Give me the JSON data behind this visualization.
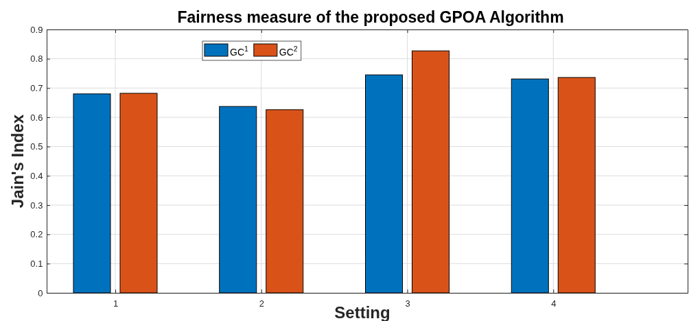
{
  "chart_data": {
    "type": "bar",
    "title": "Fairness measure of the proposed GPOA Algorithm",
    "xlabel": "Setting",
    "ylabel": "Jain's Index",
    "x": [
      1,
      2,
      3,
      4
    ],
    "xlim": [
      0.53,
      4.92
    ],
    "xticks": [
      1,
      2,
      3,
      4
    ],
    "ylim": [
      0,
      0.9
    ],
    "yticks": [
      0,
      0.1,
      0.2,
      0.3,
      0.4,
      0.5,
      0.6,
      0.7,
      0.8,
      0.9
    ],
    "series": [
      {
        "name": "GC$^{1}$",
        "color": "#0072bd",
        "values": [
          0.68,
          0.637,
          0.745,
          0.731
        ]
      },
      {
        "name": "GC$^{2}$",
        "color": "#d95319",
        "values": [
          0.682,
          0.626,
          0.827,
          0.736
        ]
      }
    ],
    "grid": true,
    "legend": "top"
  }
}
